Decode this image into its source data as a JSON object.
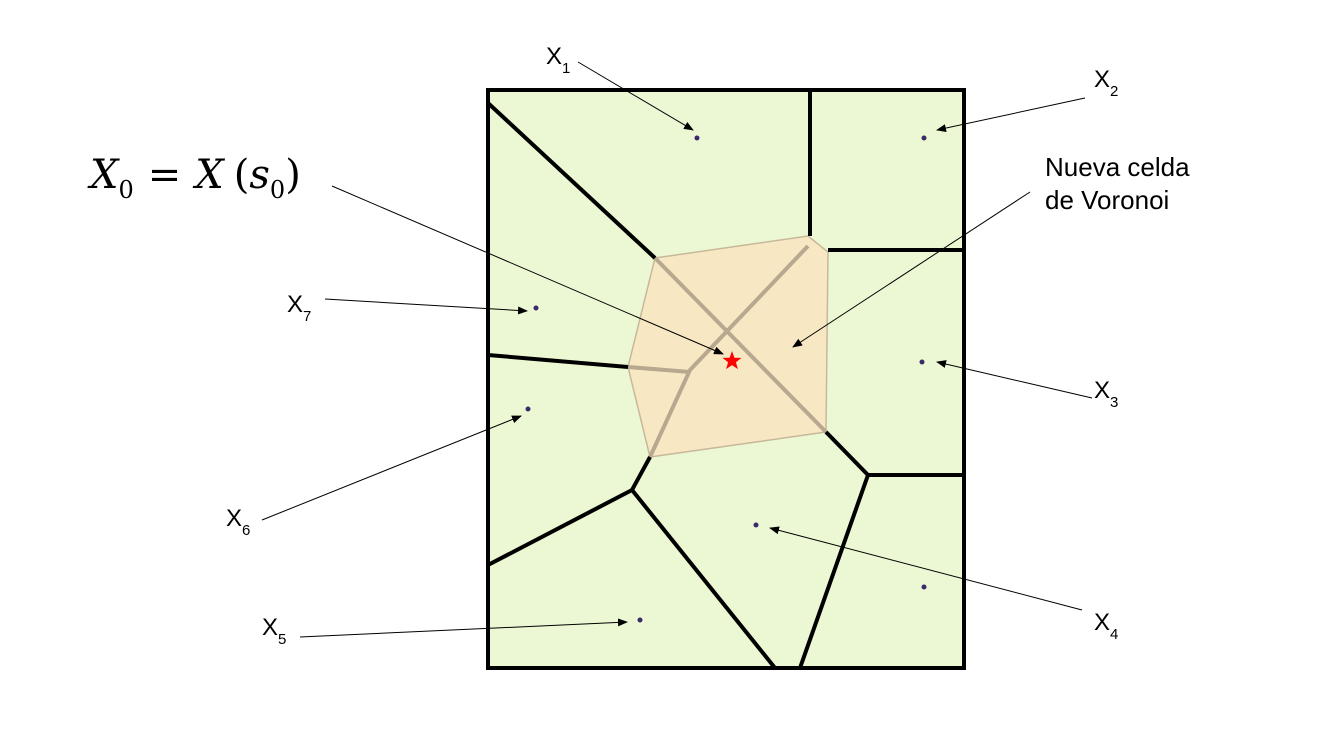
{
  "equation": {
    "x_italic": "X",
    "zero_sub": "0",
    "equals": "=",
    "X_italic": "X",
    "open_paren": "(",
    "s_italic": "s",
    "s_sub": "0",
    "close_paren": ")"
  },
  "new_cell_label": {
    "line1": "Nueva celda",
    "line2": "de Voronoi"
  },
  "points": [
    {
      "base": "X",
      "sub": "1"
    },
    {
      "base": "X",
      "sub": "2"
    },
    {
      "base": "X",
      "sub": "3"
    },
    {
      "base": "X",
      "sub": "4"
    },
    {
      "base": "X",
      "sub": "5"
    },
    {
      "base": "X",
      "sub": "6"
    },
    {
      "base": "X",
      "sub": "7"
    }
  ],
  "colors": {
    "cell_fill": "#ebf8d3",
    "new_cell_fill": "#f7e7c3",
    "old_edge_in_new_cell": "#b8a890",
    "new_point_star": "#ff0000",
    "site_dot": "#3a2a6a"
  }
}
